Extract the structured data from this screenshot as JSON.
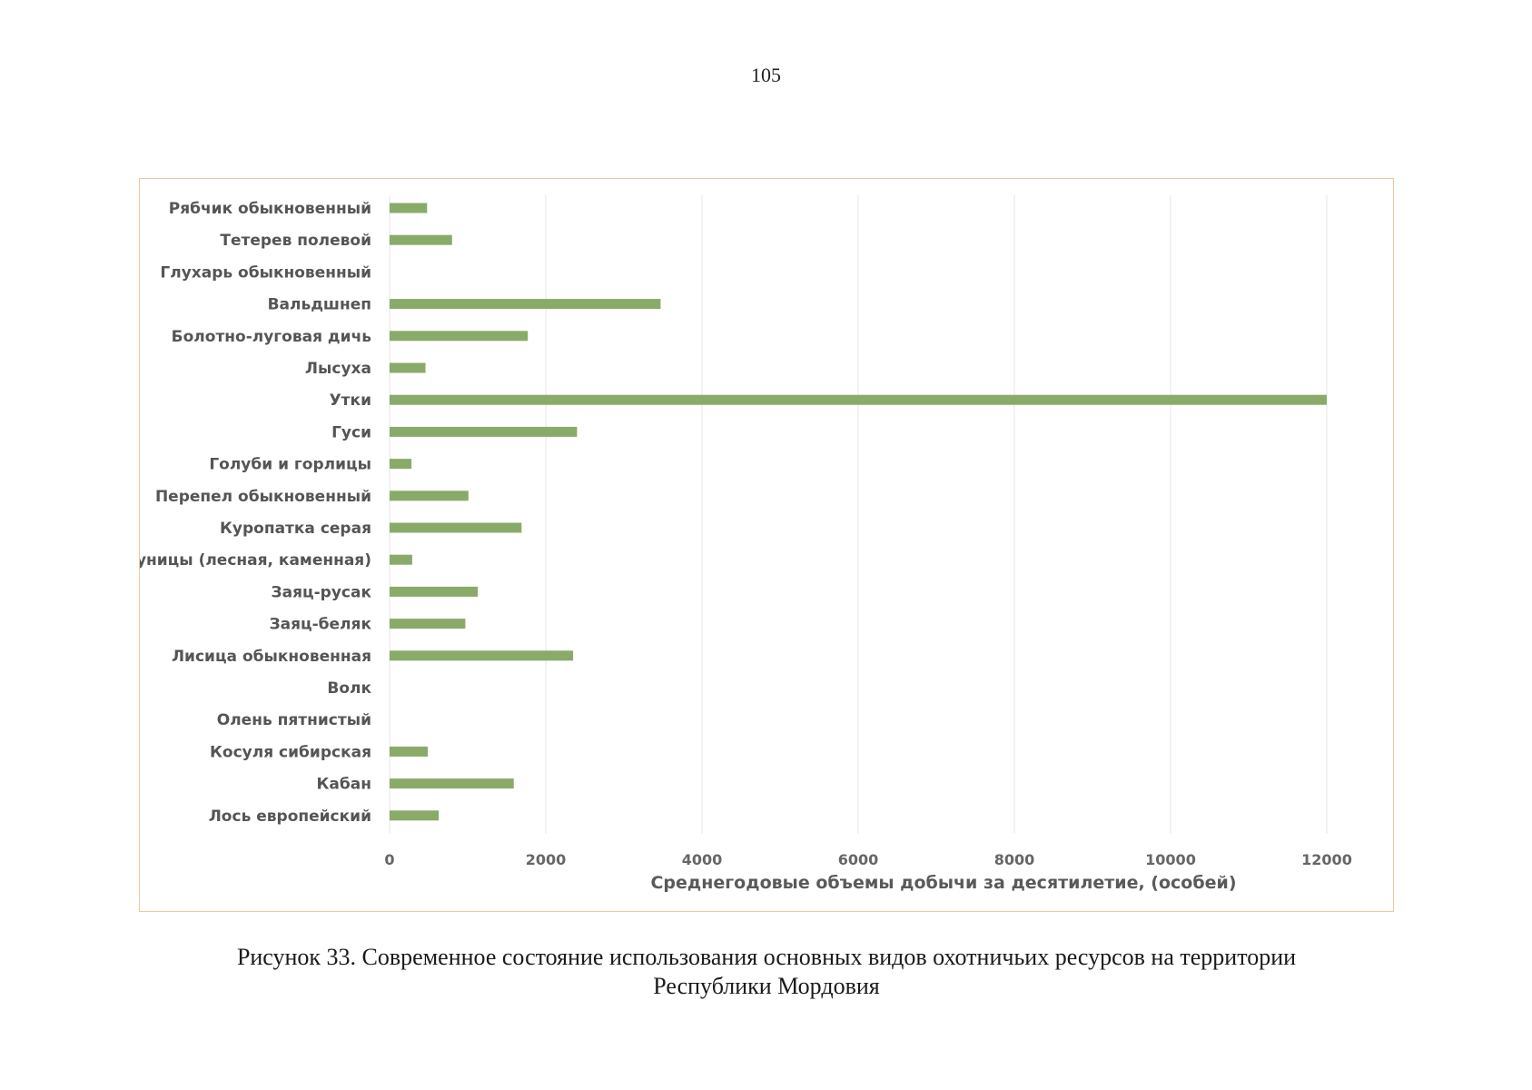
{
  "page": {
    "number": "105"
  },
  "caption": {
    "line1": "Рисунок 33. Современное состояние использования основных видов охотничьих ресурсов на территории",
    "line2": "Республики Мордовия"
  },
  "colors": {
    "bar": "#8aaa6a",
    "gridline": "#e6e6e6",
    "frame": "#f0c9a0"
  },
  "chart_data": {
    "type": "bar",
    "orientation": "horizontal",
    "title": "",
    "xlabel": "Среднегодовые объемы добычи за десятилетие, (особей)",
    "ylabel": "",
    "xlim": [
      0,
      12000
    ],
    "xticks": [
      0,
      2000,
      4000,
      6000,
      8000,
      10000,
      12000
    ],
    "grid": true,
    "legend": "none",
    "categories": [
      "Рябчик обыкновенный",
      "Тетерев полевой",
      "Глухарь обыкновенный",
      "Вальдшнеп",
      "Болотно-луговая дичь",
      "Лысуха",
      "Утки",
      "Гуси",
      "Голуби и горлицы",
      "Перепел обыкновенный",
      "Куропатка серая",
      "Куницы (лесная, каменная)",
      "Заяц-русак",
      "Заяц-беляк",
      "Лисица обыкновенная",
      "Волк",
      "Олень пятнистый",
      "Косуля сибирская",
      "Кабан",
      "Лось европейский"
    ],
    "values": [
      480,
      800,
      0,
      3470,
      1770,
      460,
      12000,
      2400,
      280,
      1010,
      1690,
      290,
      1130,
      970,
      2350,
      0,
      0,
      490,
      1590,
      630
    ]
  }
}
